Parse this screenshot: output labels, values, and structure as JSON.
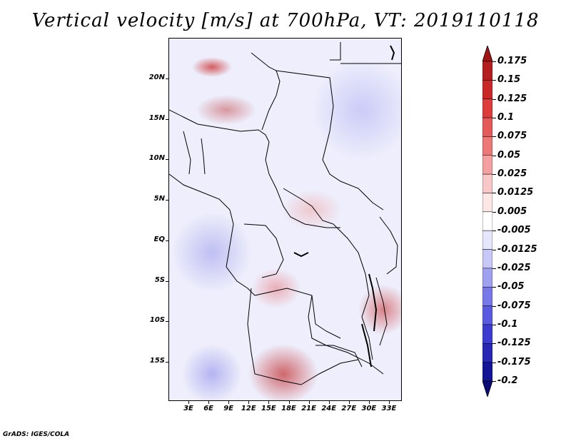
{
  "title": "Vertical velocity [m/s] at 700hPa, VT: 2019110118",
  "credit": "GrADS: IGES/COLA",
  "lat_labels": [
    "20N",
    "15N",
    "10N",
    "5N",
    "EQ",
    "5S",
    "10S",
    "15S"
  ],
  "lon_labels": [
    "3E",
    "6E",
    "9E",
    "12E",
    "15E",
    "18E",
    "21E",
    "24E",
    "27E",
    "30E",
    "33E"
  ],
  "colorbar": {
    "labels": [
      "0.175",
      "0.15",
      "0.125",
      "0.1",
      "0.075",
      "0.05",
      "0.025",
      "0.0125",
      "0.005",
      "-0.005",
      "-0.0125",
      "-0.025",
      "-0.05",
      "-0.075",
      "-0.1",
      "-0.125",
      "-0.175",
      "-0.2"
    ],
    "colors": [
      "#a01414",
      "#b41e1e",
      "#c82828",
      "#dc3c3c",
      "#e45a5a",
      "#ec7878",
      "#f4a0a0",
      "#f8c8c8",
      "#fce6e6",
      "#ffffff",
      "#e6e6fc",
      "#c8c8f8",
      "#a0a0f0",
      "#7878e8",
      "#5a5ae0",
      "#3c3cd0",
      "#2828b4",
      "#141496",
      "#0a0a78"
    ]
  }
}
